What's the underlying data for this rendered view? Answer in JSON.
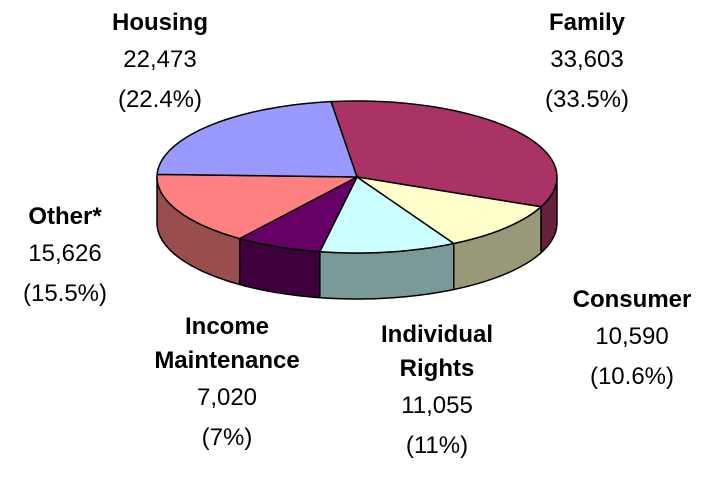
{
  "chart_data": {
    "type": "pie3d",
    "categories": [
      "Family",
      "Consumer",
      "Individual Rights",
      "Income Maintenance",
      "Other*",
      "Housing"
    ],
    "values": [
      33603,
      10590,
      11055,
      7020,
      15626,
      22473
    ],
    "value_labels": [
      "33,603",
      "10,590",
      "11,055",
      "7,020",
      "15,626",
      "22,473"
    ],
    "percentages": [
      33.5,
      10.6,
      11,
      7,
      15.5,
      22.4
    ],
    "percent_labels": [
      "(33.5%)",
      "(10.6%)",
      "(11%)",
      "(7%)",
      "(15.5%)",
      "(22.4%)"
    ],
    "colors": [
      "#aa3366",
      "#ffffcc",
      "#ccffff",
      "#660066",
      "#ff8080",
      "#9999ff"
    ]
  }
}
